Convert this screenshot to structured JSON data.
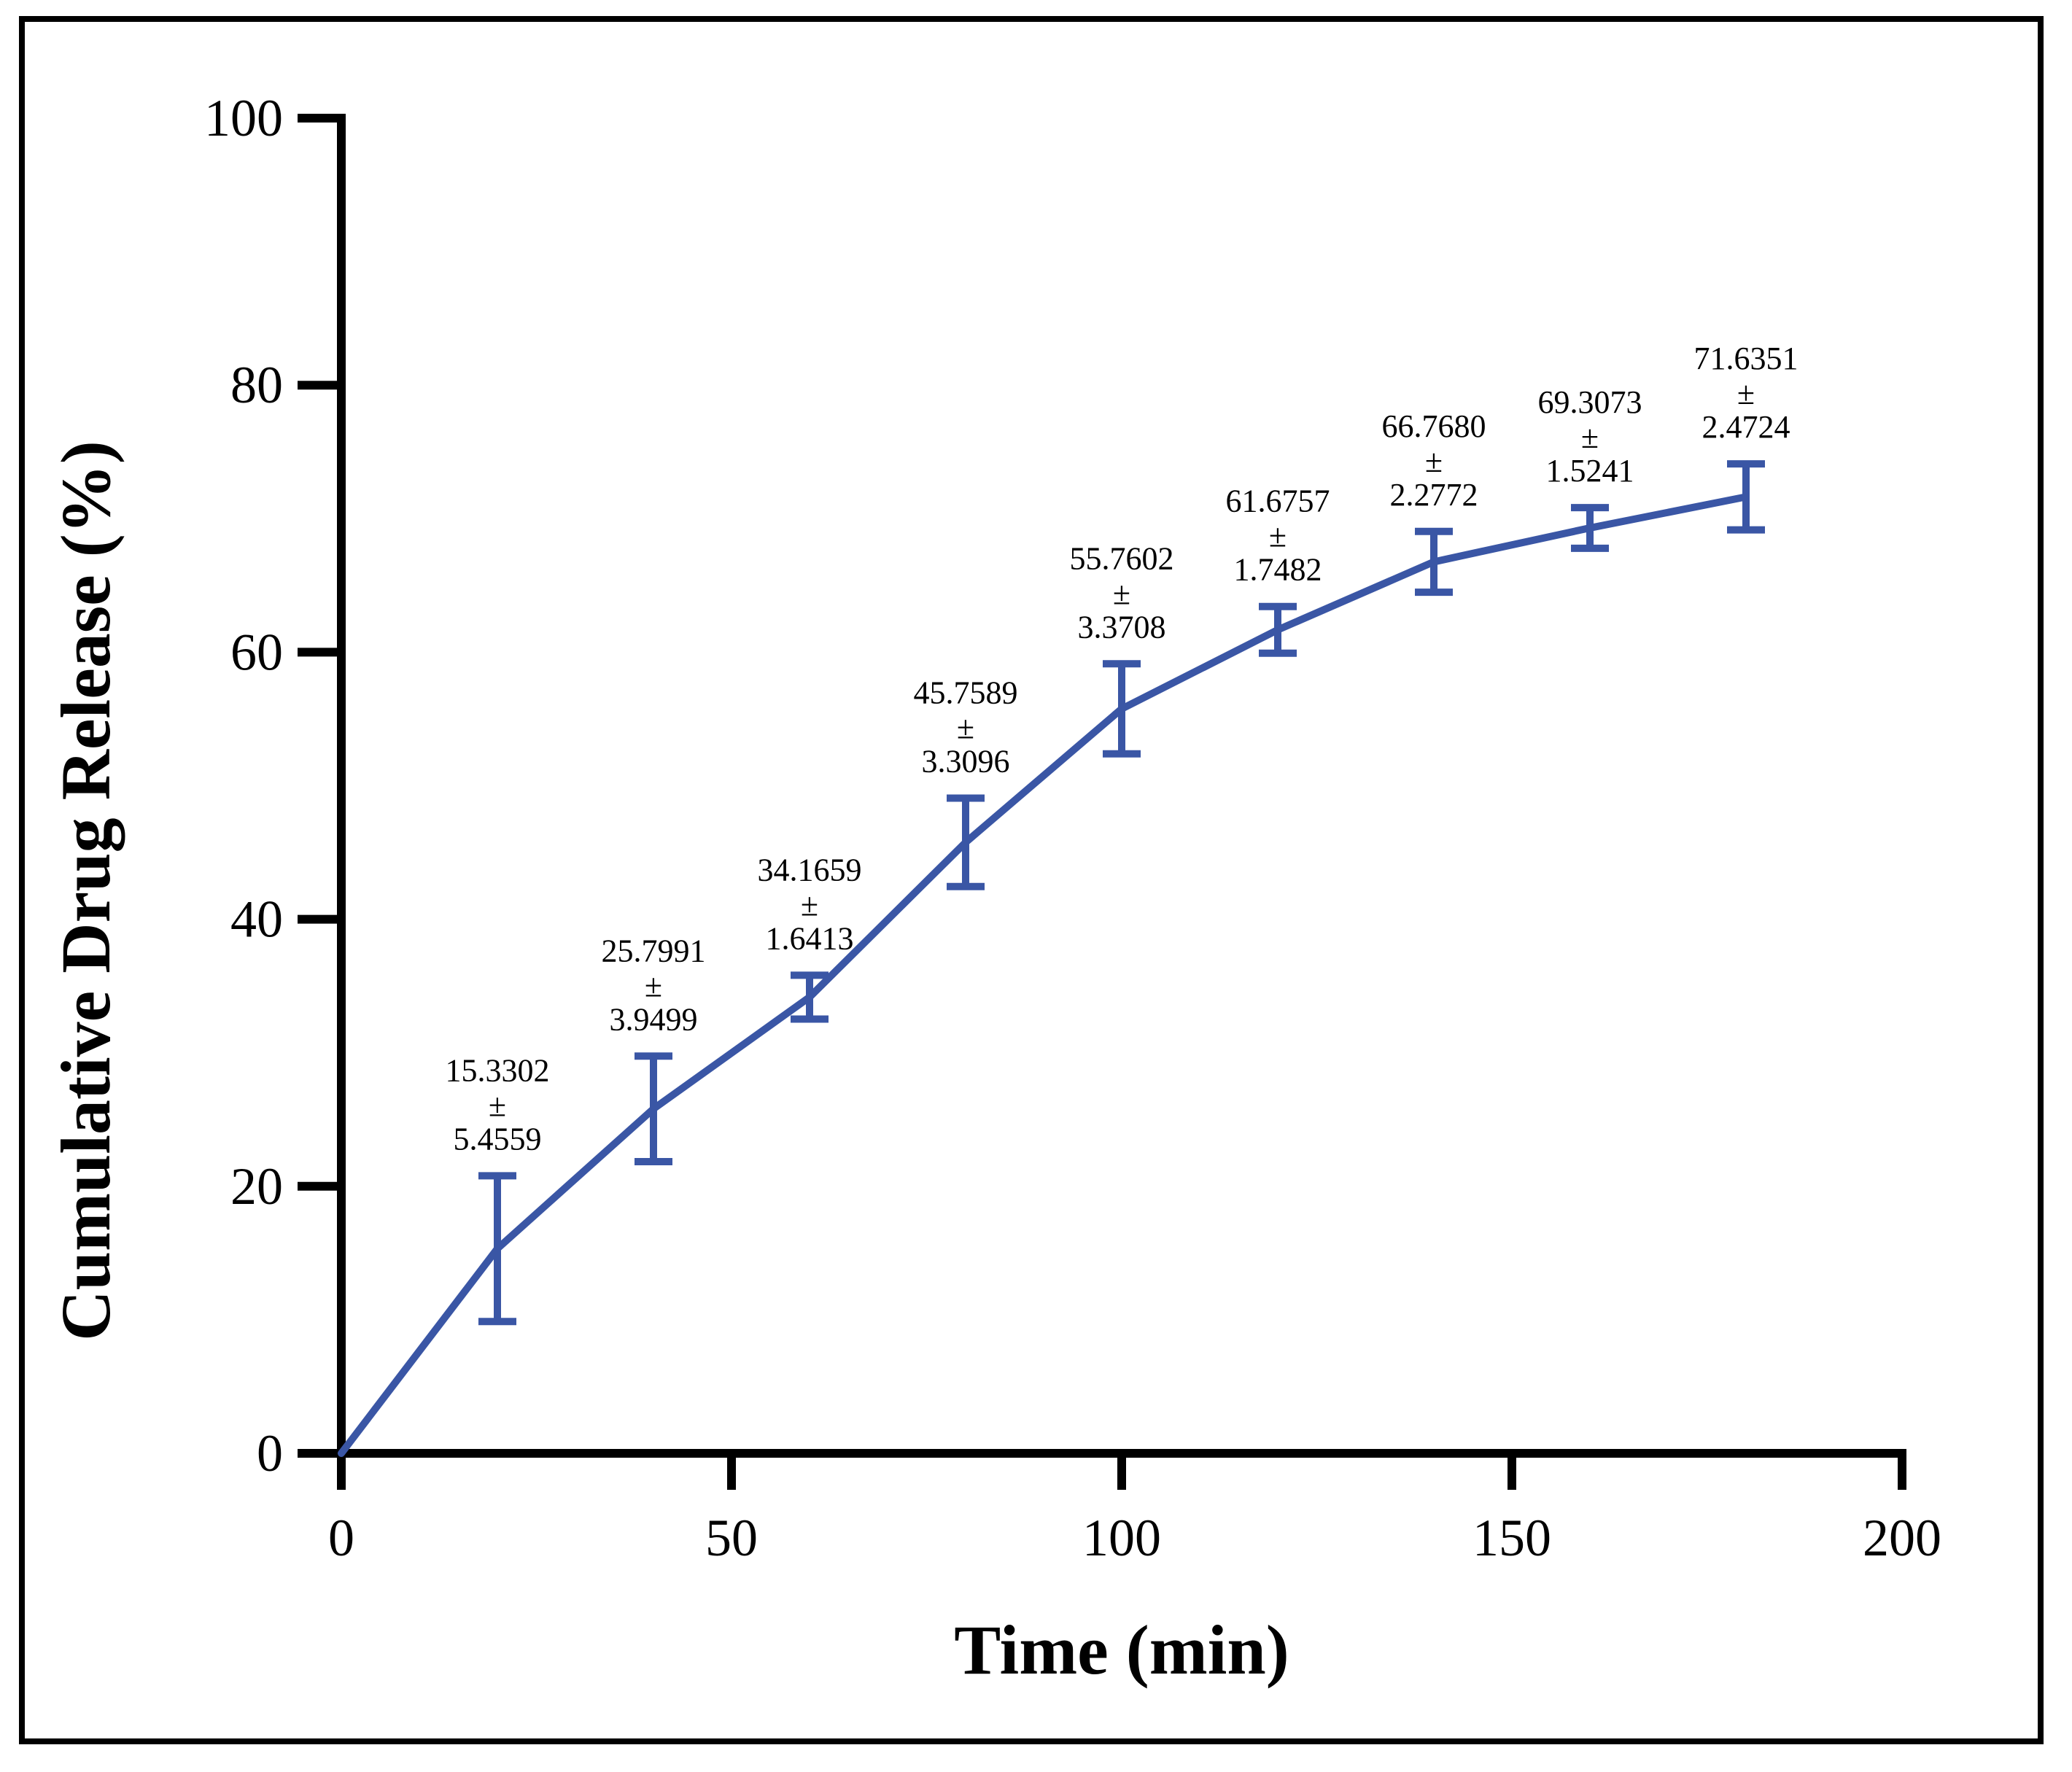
{
  "chart_data": {
    "type": "line",
    "title": "",
    "xlabel": "Time (min)",
    "ylabel": "Cumulative Drug Release (%)",
    "xlim": [
      0,
      200
    ],
    "ylim": [
      0,
      100
    ],
    "x_ticks": [
      0,
      50,
      100,
      150,
      200
    ],
    "y_ticks": [
      0,
      20,
      40,
      60,
      80,
      100
    ],
    "grid": false,
    "legend": "none",
    "color": "#3a56a5",
    "series": [
      {
        "name": "Cumulative Drug Release",
        "x": [
          0,
          20,
          40,
          60,
          80,
          100,
          120,
          140,
          160,
          180
        ],
        "y": [
          0,
          15.3302,
          25.7991,
          34.1659,
          45.7589,
          55.7602,
          61.6757,
          66.768,
          69.3073,
          71.6351
        ],
        "error": [
          0,
          5.4559,
          3.9499,
          1.6413,
          3.3096,
          3.3708,
          1.7482,
          2.2772,
          1.5241,
          2.4724
        ]
      }
    ],
    "annotations": [
      {
        "x": 20,
        "mean": "15.3302",
        "pm": "±",
        "sd": "5.4559"
      },
      {
        "x": 40,
        "mean": "25.7991",
        "pm": "±",
        "sd": "3.9499"
      },
      {
        "x": 60,
        "mean": "34.1659",
        "pm": "±",
        "sd": "1.6413"
      },
      {
        "x": 80,
        "mean": "45.7589",
        "pm": "±",
        "sd": "3.3096"
      },
      {
        "x": 100,
        "mean": "55.7602",
        "pm": "±",
        "sd": "3.3708"
      },
      {
        "x": 120,
        "mean": "61.6757",
        "pm": "±",
        "sd": "1.7482"
      },
      {
        "x": 140,
        "mean": "66.7680",
        "pm": "±",
        "sd": "2.2772"
      },
      {
        "x": 160,
        "mean": "69.3073",
        "pm": "±",
        "sd": "1.5241"
      },
      {
        "x": 180,
        "mean": "71.6351",
        "pm": "±",
        "sd": "2.4724"
      }
    ]
  }
}
